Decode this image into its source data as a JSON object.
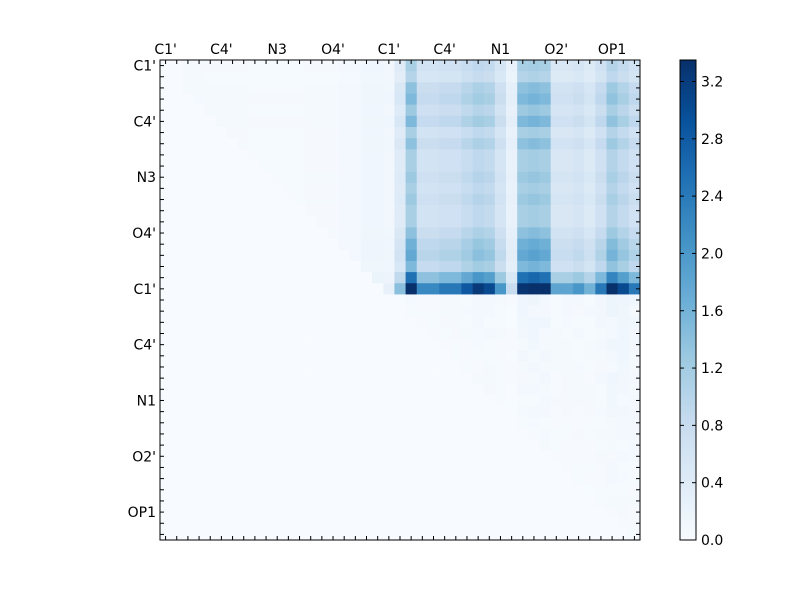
{
  "chart_data": {
    "type": "heatmap",
    "title": "",
    "xlabel": "",
    "ylabel": "",
    "n": 43,
    "x_tick_labels": [
      "C1'",
      "C4'",
      "N3",
      "O4'",
      "C1'",
      "C4'",
      "N1",
      "O2'",
      "OP1"
    ],
    "y_tick_labels": [
      "C1'",
      "C4'",
      "N3",
      "O4'",
      "C1'",
      "C4'",
      "N1",
      "O2'",
      "OP1"
    ],
    "label_positions": [
      0.5,
      5.5,
      10.5,
      15.5,
      20.5,
      25.5,
      30.5,
      35.5,
      40.5
    ],
    "colormap": "Blues",
    "colormap_stops": [
      "#f7fbff",
      "#deebf7",
      "#c6dbef",
      "#9ecae1",
      "#6baed6",
      "#4292c6",
      "#2171b5",
      "#08519c",
      "#08306b"
    ],
    "color_range": [
      0.0,
      3.35
    ],
    "colorbar_ticks": [
      "0.0",
      "0.4",
      "0.8",
      "1.2",
      "1.6",
      "2.0",
      "2.4",
      "2.8",
      "3.2"
    ],
    "colorbar_tick_values": [
      0.0,
      0.4,
      0.8,
      1.2,
      1.6,
      2.0,
      2.4,
      2.8,
      3.2
    ],
    "x_column_weights": [
      0,
      0,
      0.15,
      0.15,
      0.12,
      0.12,
      0.12,
      0.12,
      0.1,
      0.1,
      0.1,
      0.1,
      0.1,
      0.12,
      0.12,
      0.12,
      0.2,
      0.2,
      0.35,
      0.35,
      0.3,
      0.35,
      1.0,
      0.55,
      0.55,
      0.6,
      0.6,
      0.7,
      0.8,
      0.75,
      0.5,
      0.2,
      1.0,
      1.05,
      1.0,
      0.45,
      0.45,
      0.5,
      0.4,
      0.6,
      0.9,
      0.75,
      0.6
    ],
    "y_row_weights": [
      0.45,
      0.4,
      0.55,
      0.6,
      0.5,
      0.6,
      0.45,
      0.55,
      0.45,
      0.45,
      0.5,
      0.45,
      0.5,
      0.45,
      0.45,
      0.55,
      0.65,
      0.7,
      0.6,
      1.0,
      1.6
    ],
    "block_base_value": 1.15,
    "cross_region_scale": 0.35,
    "within_region_scale": 0.15,
    "peak_value": 3.3
  }
}
